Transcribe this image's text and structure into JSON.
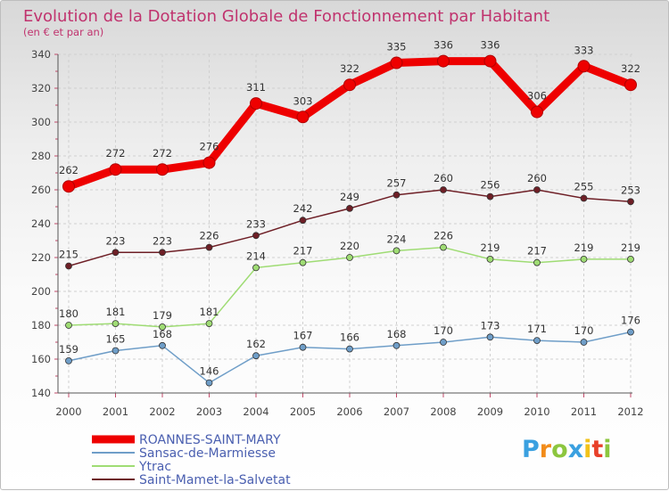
{
  "chart_data": {
    "type": "line",
    "title": "Evolution de la Dotation Globale de Fonctionnement par Habitant",
    "subtitle": "(en € et par an)",
    "xlabel": "",
    "ylabel": "",
    "ylim": [
      140,
      340
    ],
    "yticks": [
      "140",
      "160",
      "180",
      "200",
      "220",
      "240",
      "260",
      "280",
      "300",
      "320",
      "340"
    ],
    "x": [
      "2000",
      "2001",
      "2002",
      "2003",
      "2004",
      "2005",
      "2006",
      "2007",
      "2008",
      "2009",
      "2010",
      "2011",
      "2012"
    ],
    "grid": true,
    "legend_position": "bottom-left",
    "series": [
      {
        "name": "Saint-Mamet-la-Salvetat",
        "color": "#6e1f26",
        "values": [
          215,
          223,
          223,
          226,
          233,
          242,
          249,
          257,
          260,
          256,
          260,
          255,
          253
        ]
      },
      {
        "name": "Sansac-de-Marmiesse",
        "color": "#6f9ec8",
        "values": [
          159,
          165,
          168,
          146,
          162,
          167,
          166,
          168,
          170,
          173,
          171,
          170,
          176
        ]
      },
      {
        "name": "Ytrac",
        "color": "#9fdc74",
        "values": [
          180,
          181,
          179,
          181,
          214,
          217,
          220,
          224,
          226,
          219,
          217,
          219,
          219
        ]
      },
      {
        "name": "ROANNES-SAINT-MARY",
        "color": "#ee0000",
        "values": [
          262,
          272,
          272,
          276,
          311,
          303,
          322,
          335,
          336,
          336,
          306,
          333,
          322
        ]
      }
    ],
    "legend_order": [
      "ROANNES-SAINT-MARY",
      "Sansac-de-Marmiesse",
      "Ytrac",
      "Saint-Mamet-la-Salvetat"
    ]
  },
  "colors": {
    "title": "#c0336e",
    "legend_text": "#4a5fb0",
    "axis": "#444444",
    "grid": "#d0d0d0"
  },
  "logo": {
    "letters": [
      "P",
      "r",
      "o",
      "x",
      "i",
      "t",
      "i"
    ],
    "colors": [
      "#3aa0e0",
      "#f28c1a",
      "#8cc63f",
      "#3aa0e0",
      "#f2c21a",
      "#e8402a",
      "#8cc63f"
    ]
  }
}
